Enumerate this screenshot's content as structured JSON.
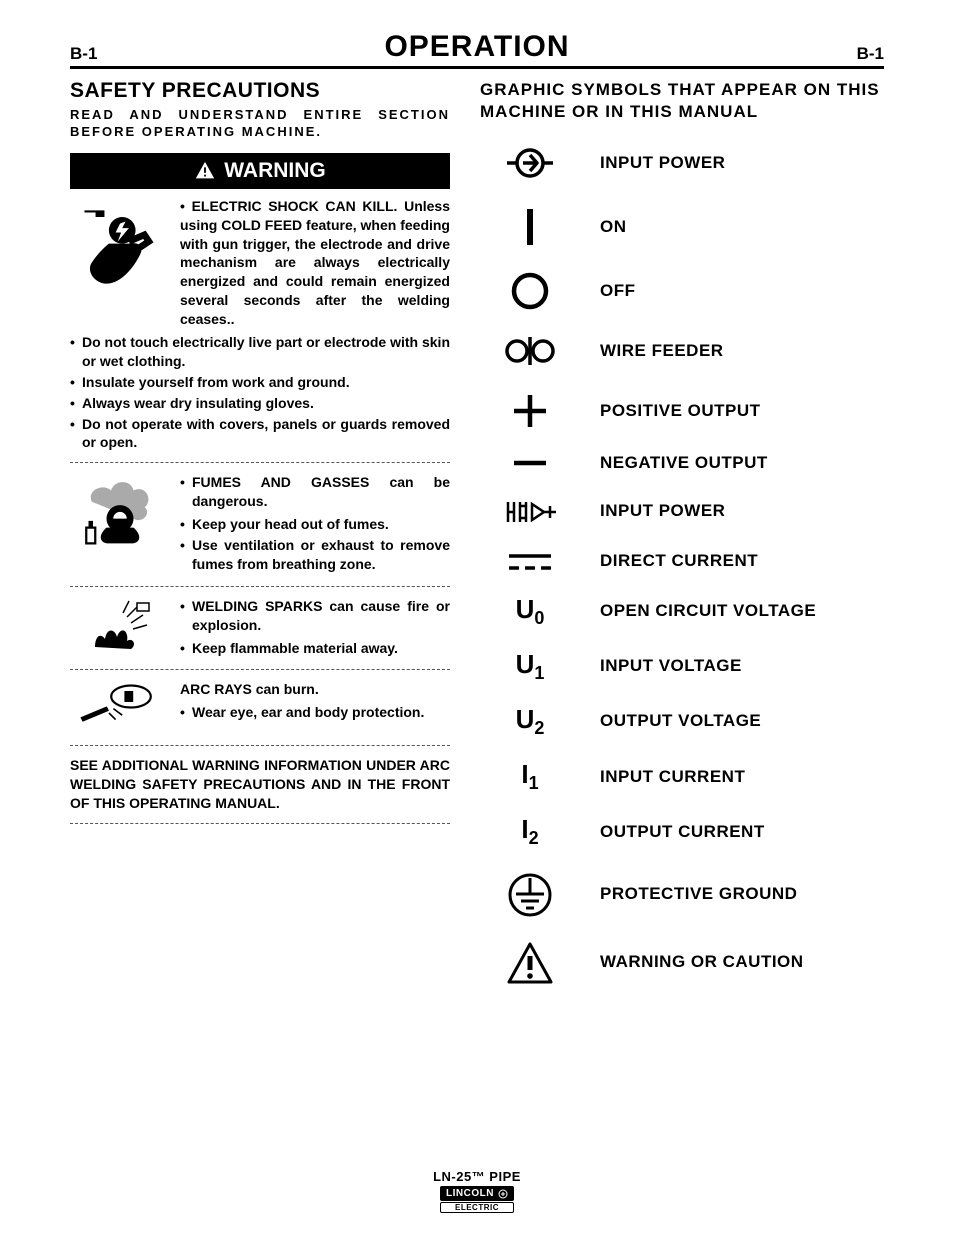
{
  "header": {
    "left": "B-1",
    "center": "OPERATION",
    "right": "B-1"
  },
  "left_col": {
    "safety_title": "SAFETY PRECAUTIONS",
    "safety_sub": "READ AND UNDERSTAND ENTIRE SECTION BEFORE OPERATING MACHINE.",
    "warning_label": "WARNING",
    "shock_heading": "ELECTRIC SHOCK CAN KILL.",
    "shock_body": "Unless using COLD FEED feature, when feeding with gun trigger, the electrode and drive mechanism are always electrically energized and could remain energized several seconds after the welding ceases..",
    "shock_items": [
      "Do not touch electrically live part or electrode with skin or wet clothing.",
      "Insulate yourself from work and ground.",
      "Always wear dry insulating gloves.",
      "Do not operate with covers, panels or guards removed or open."
    ],
    "fumes_heading": "FUMES AND GASSES can be dangerous.",
    "fumes_items": [
      "Keep your head out of fumes.",
      "Use ventilation or exhaust to remove fumes from breathing zone."
    ],
    "sparks_heading": "WELDING SPARKS can cause fire or explosion.",
    "sparks_items": [
      "Keep flammable material away."
    ],
    "arc_heading": "ARC RAYS can burn.",
    "arc_items": [
      "Wear eye, ear and body protection."
    ],
    "footer_note": "SEE ADDITIONAL WARNING INFORMATION UNDER ARC WELDING SAFETY PRECAUTIONS AND IN THE FRONT OF THIS OPERATING MANUAL."
  },
  "right_col": {
    "title": "GRAPHIC SYMBOLS THAT APPEAR ON THIS MACHINE OR IN THIS MANUAL",
    "symbols": [
      {
        "id": "input-power-1",
        "label": "INPUT POWER"
      },
      {
        "id": "on",
        "label": "ON"
      },
      {
        "id": "off",
        "label": "OFF"
      },
      {
        "id": "wire-feeder",
        "label": "WIRE FEEDER"
      },
      {
        "id": "positive",
        "label": "POSITIVE OUTPUT"
      },
      {
        "id": "negative",
        "label": "NEGATIVE OUTPUT"
      },
      {
        "id": "input-power-2",
        "label": "INPUT POWER"
      },
      {
        "id": "dc",
        "label": "DIRECT CURRENT"
      },
      {
        "id": "u0",
        "label": "OPEN CIRCUIT VOLTAGE",
        "text": "U",
        "sub": "0"
      },
      {
        "id": "u1",
        "label": "INPUT VOLTAGE",
        "text": "U",
        "sub": "1"
      },
      {
        "id": "u2",
        "label": "OUTPUT VOLTAGE",
        "text": "U",
        "sub": "2"
      },
      {
        "id": "i1",
        "label": "INPUT CURRENT",
        "text": "I",
        "sub": "1"
      },
      {
        "id": "i2",
        "label": "OUTPUT CURRENT",
        "text": "I",
        "sub": "2"
      },
      {
        "id": "ground",
        "label": "PROTECTIVE GROUND"
      },
      {
        "id": "warning",
        "label": "WARNING OR CAUTION"
      }
    ]
  },
  "footer": {
    "product": "LN-25™ PIPE",
    "logo_top": "LINCOLN",
    "logo_bot": "ELECTRIC"
  }
}
